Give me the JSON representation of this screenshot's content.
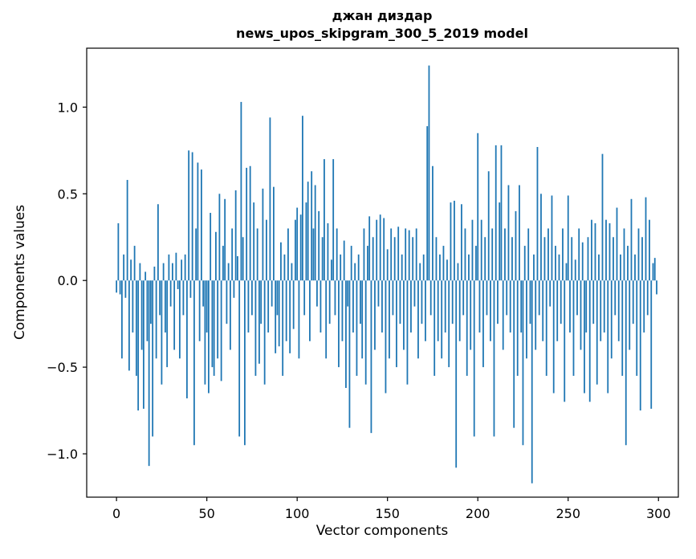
{
  "chart_data": {
    "type": "bar",
    "title_line1": "джан диздар",
    "title_line2": "news_upos_skipgram_300_5_2019 model",
    "xlabel": "Vector components",
    "ylabel": "Components values",
    "xlim": [
      -16.5,
      311
    ],
    "ylim": [
      -1.25,
      1.34
    ],
    "x_ticks": [
      0,
      50,
      100,
      150,
      200,
      250,
      300
    ],
    "y_ticks": [
      -1.0,
      -0.5,
      0.0,
      0.5,
      1.0
    ],
    "bar_color": "#1f77b4",
    "x_start": 0,
    "values": [
      -0.07,
      0.33,
      -0.08,
      -0.45,
      0.15,
      -0.1,
      0.58,
      -0.52,
      0.12,
      -0.3,
      0.2,
      -0.55,
      -0.75,
      0.1,
      -0.4,
      -0.74,
      0.05,
      -0.35,
      -1.07,
      -0.25,
      -0.9,
      0.08,
      -0.45,
      0.44,
      -0.2,
      -0.6,
      0.1,
      -0.3,
      -0.5,
      0.15,
      -0.15,
      0.1,
      -0.4,
      0.16,
      -0.05,
      -0.45,
      0.12,
      -0.2,
      0.15,
      -0.68,
      0.75,
      -0.1,
      0.74,
      -0.95,
      0.3,
      0.68,
      -0.35,
      0.64,
      -0.15,
      -0.6,
      -0.3,
      -0.65,
      0.39,
      -0.5,
      -0.55,
      0.28,
      -0.45,
      0.5,
      -0.58,
      0.2,
      0.47,
      -0.25,
      0.1,
      -0.4,
      0.3,
      -0.1,
      0.52,
      0.14,
      -0.9,
      1.03,
      0.25,
      -0.95,
      0.65,
      -0.3,
      0.66,
      -0.2,
      0.45,
      -0.55,
      0.3,
      -0.48,
      -0.25,
      0.53,
      -0.6,
      0.35,
      -0.3,
      0.94,
      -0.15,
      0.54,
      -0.42,
      -0.2,
      -0.38,
      0.22,
      -0.55,
      0.15,
      -0.35,
      0.3,
      -0.42,
      0.1,
      -0.28,
      0.35,
      0.42,
      -0.45,
      0.38,
      0.95,
      -0.2,
      0.45,
      0.57,
      -0.35,
      0.63,
      0.3,
      0.55,
      -0.15,
      0.4,
      -0.3,
      0.25,
      0.7,
      -0.45,
      0.33,
      -0.25,
      0.12,
      0.7,
      -0.2,
      0.3,
      -0.5,
      0.15,
      -0.35,
      0.23,
      -0.62,
      -0.15,
      -0.85,
      0.2,
      -0.3,
      0.1,
      -0.55,
      0.15,
      -0.25,
      -0.45,
      0.3,
      -0.6,
      0.2,
      0.37,
      -0.88,
      0.25,
      -0.4,
      0.35,
      -0.15,
      0.38,
      -0.3,
      0.36,
      -0.65,
      0.18,
      -0.45,
      0.3,
      -0.2,
      0.25,
      -0.5,
      0.31,
      -0.25,
      0.15,
      -0.4,
      0.3,
      -0.6,
      0.29,
      -0.3,
      0.25,
      -0.15,
      0.3,
      -0.45,
      0.1,
      -0.25,
      0.15,
      -0.35,
      0.89,
      1.24,
      -0.2,
      0.66,
      -0.55,
      0.25,
      -0.35,
      0.15,
      -0.45,
      0.2,
      -0.3,
      0.12,
      -0.5,
      0.45,
      -0.25,
      0.46,
      -1.08,
      0.1,
      -0.35,
      0.44,
      -0.2,
      0.3,
      -0.55,
      0.15,
      -0.4,
      0.35,
      -0.9,
      0.2,
      0.85,
      -0.3,
      0.35,
      -0.5,
      0.25,
      -0.2,
      0.63,
      -0.35,
      0.3,
      -0.9,
      0.78,
      -0.25,
      0.45,
      0.78,
      -0.4,
      0.3,
      -0.2,
      0.55,
      -0.3,
      0.25,
      -0.85,
      0.4,
      -0.55,
      0.55,
      -0.3,
      -0.95,
      0.2,
      -0.45,
      0.3,
      -0.25,
      -1.17,
      0.15,
      -0.4,
      0.77,
      -0.2,
      0.5,
      -0.35,
      0.25,
      -0.55,
      0.3,
      -0.15,
      0.49,
      -0.65,
      0.2,
      -0.35,
      0.15,
      -0.25,
      0.3,
      -0.7,
      0.1,
      0.49,
      -0.3,
      0.25,
      -0.55,
      0.12,
      -0.2,
      0.3,
      -0.4,
      0.22,
      -0.65,
      -0.3,
      0.25,
      -0.7,
      0.35,
      -0.25,
      0.33,
      -0.6,
      0.15,
      -0.35,
      0.73,
      -0.3,
      0.35,
      -0.65,
      0.33,
      -0.45,
      0.25,
      -0.2,
      0.42,
      -0.35,
      0.15,
      -0.55,
      0.3,
      -0.95,
      0.2,
      -0.4,
      0.47,
      -0.25,
      0.15,
      -0.55,
      0.3,
      -0.75,
      0.25,
      -0.3,
      0.48,
      -0.2,
      0.35,
      -0.74,
      0.1,
      0.13,
      -0.08
    ]
  }
}
